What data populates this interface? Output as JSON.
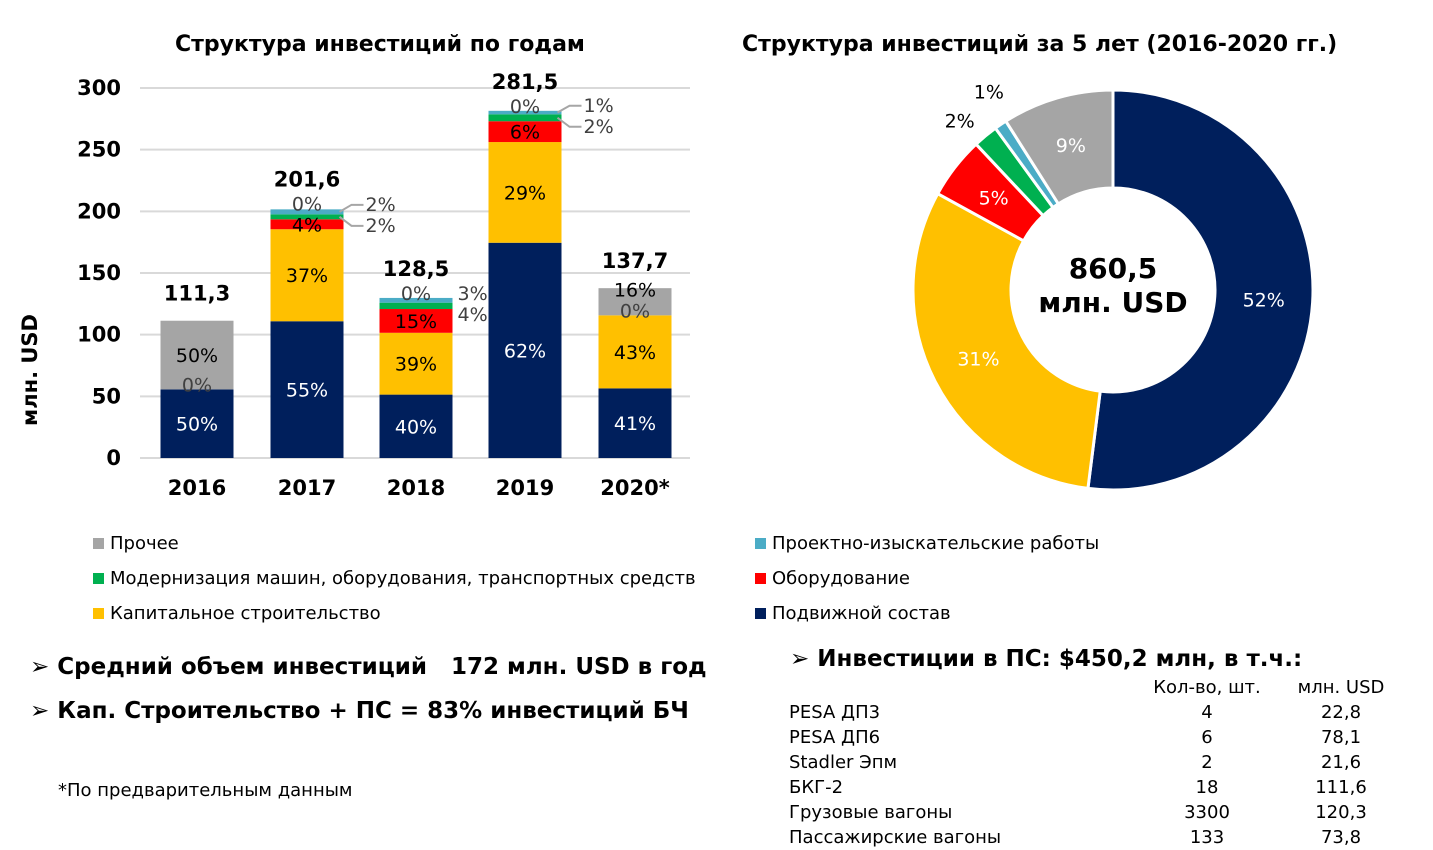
{
  "colors": {
    "rolling_stock": "#001f5c",
    "capital": "#ffc000",
    "equipment": "#ff0000",
    "modernization": "#00b050",
    "design": "#4bacc6",
    "other": "#a5a5a5"
  },
  "chart_data": [
    {
      "type": "bar",
      "stacked": true,
      "title": "Структура инвестиций по годам",
      "ylabel": "млн. USD",
      "ylim": [
        0,
        300
      ],
      "yticks": [
        0,
        50,
        100,
        150,
        200,
        250,
        300
      ],
      "grid": true,
      "categories": [
        "2016",
        "2017",
        "2018",
        "2019",
        "2020*"
      ],
      "totals": [
        111.3,
        201.6,
        128.5,
        281.5,
        137.7
      ],
      "total_labels": [
        "111,3",
        "201,6",
        "128,5",
        "281,5",
        "137,7"
      ],
      "series": [
        {
          "name": "Подвижной состав",
          "key": "rolling_stock",
          "pct": [
            50,
            55,
            40,
            62,
            41
          ]
        },
        {
          "name": "Капитальное строительство",
          "key": "capital",
          "pct": [
            0,
            37,
            39,
            29,
            43
          ]
        },
        {
          "name": "Оборудование",
          "key": "equipment",
          "pct": [
            null,
            4,
            15,
            6,
            0
          ]
        },
        {
          "name": "Модернизация машин, оборудования, транспортных средств",
          "key": "modernization",
          "pct": [
            null,
            2,
            4,
            2,
            null
          ]
        },
        {
          "name": "Проектно-изыскательские работы",
          "key": "design",
          "pct": [
            null,
            2,
            3,
            1,
            null
          ]
        },
        {
          "name": "Прочее",
          "key": "other",
          "pct": [
            50,
            0,
            0,
            0,
            16
          ]
        }
      ]
    },
    {
      "type": "pie",
      "donut": true,
      "title": "Структура инвестиций за 5 лет (2016-2020 гг.)",
      "center_label": [
        "860,5",
        "млн. USD"
      ],
      "slices": [
        {
          "key": "rolling_stock",
          "value": 52
        },
        {
          "key": "capital",
          "value": 31
        },
        {
          "key": "equipment",
          "value": 5
        },
        {
          "key": "modernization",
          "value": 2
        },
        {
          "key": "design",
          "value": 1
        },
        {
          "key": "other",
          "value": 9
        }
      ]
    }
  ],
  "legend": [
    {
      "label": "Прочее",
      "key": "other"
    },
    {
      "label": "Проектно-изыскательские работы",
      "key": "design"
    },
    {
      "label": "Модернизация машин, оборудования, транспортных средств",
      "key": "modernization"
    },
    {
      "label": "Оборудование",
      "key": "equipment"
    },
    {
      "label": "Капитальное строительство",
      "key": "capital"
    },
    {
      "label": "Подвижной состав",
      "key": "rolling_stock"
    }
  ],
  "bullets": [
    "Средний объем инвестиций   172 млн. USD в год",
    "Кап. Строительство + ПС = 83% инвестиций БЧ"
  ],
  "footnote": "*По предварительным данным",
  "ps": {
    "title": "Инвестиции в ПС: $450,2 млн, в т.ч.:",
    "headers": [
      "Кол-во, шт.",
      "млн. USD"
    ],
    "rows": [
      [
        "PESA ДП3",
        "4",
        "22,8"
      ],
      [
        "PESA ДП6",
        "6",
        "78,1"
      ],
      [
        "Stadler Эпм",
        "2",
        "21,6"
      ],
      [
        "БКГ-2",
        "18",
        "111,6"
      ],
      [
        "Грузовые вагоны",
        "3300",
        "120,3"
      ],
      [
        "Пассажирские вагоны",
        "133",
        "73,8"
      ]
    ]
  }
}
